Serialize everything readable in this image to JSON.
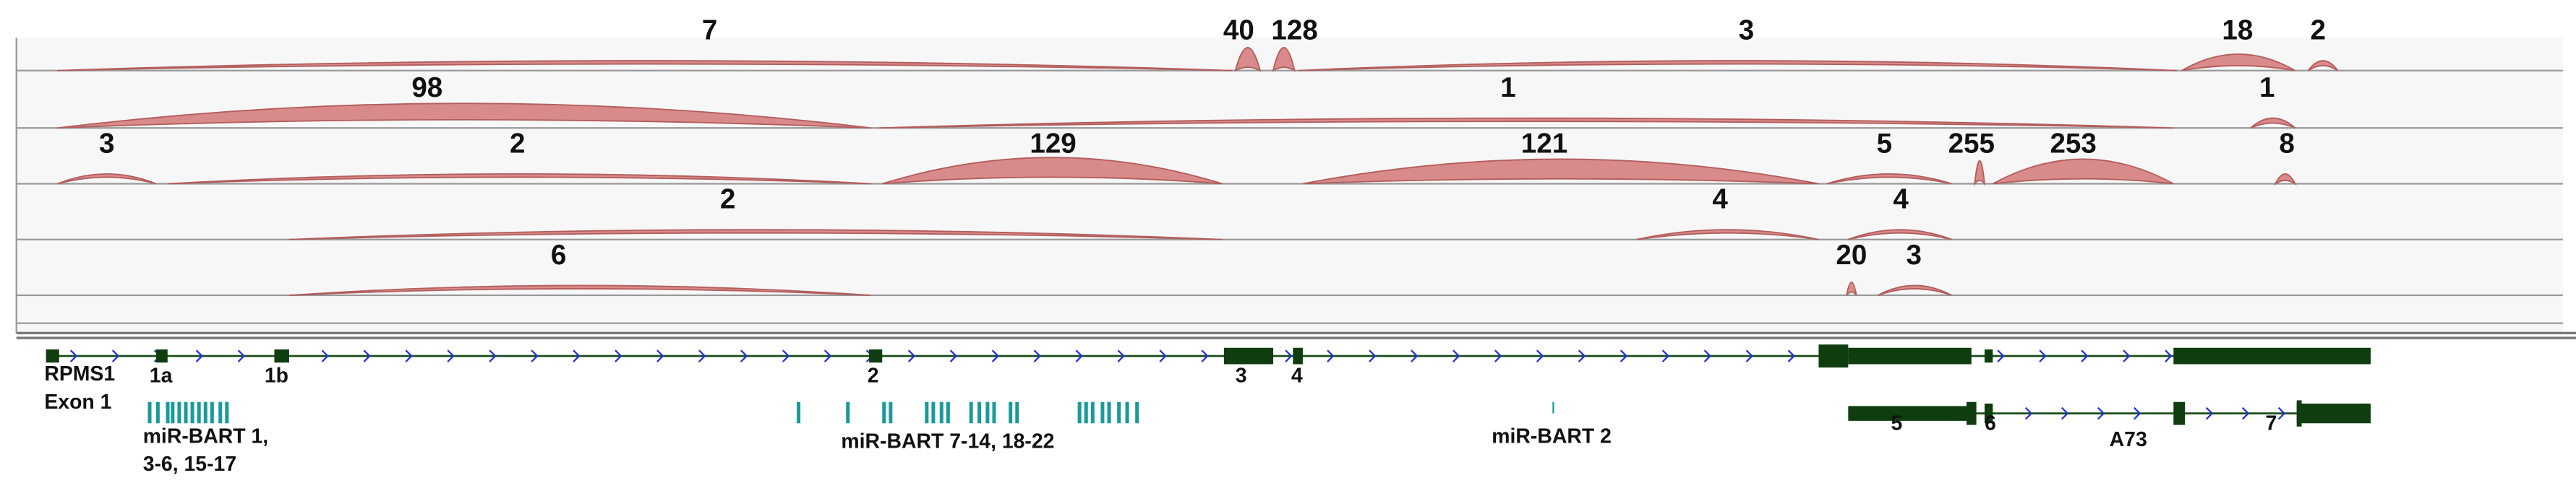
{
  "junction_rows": [
    {
      "counts": [
        7,
        40,
        128,
        3,
        18,
        2
      ]
    },
    {
      "counts": [
        98,
        1,
        1
      ]
    },
    {
      "counts": [
        3,
        2,
        129,
        121,
        5,
        255,
        253,
        8
      ]
    },
    {
      "counts": [
        2,
        4,
        4
      ]
    },
    {
      "counts": [
        6,
        20,
        3
      ]
    }
  ],
  "gene": {
    "name": "RPMS1",
    "first_exon": "Exon 1",
    "exon_labels": [
      "1a",
      "1b",
      "2",
      "3",
      "4",
      "5",
      "6",
      "7"
    ],
    "mirna_labels": [
      "miR-BART 1,",
      "3-6, 15-17",
      "miR-BART 7-14, 18-22",
      "miR-BART 2"
    ],
    "transcript_label": "A73"
  }
}
